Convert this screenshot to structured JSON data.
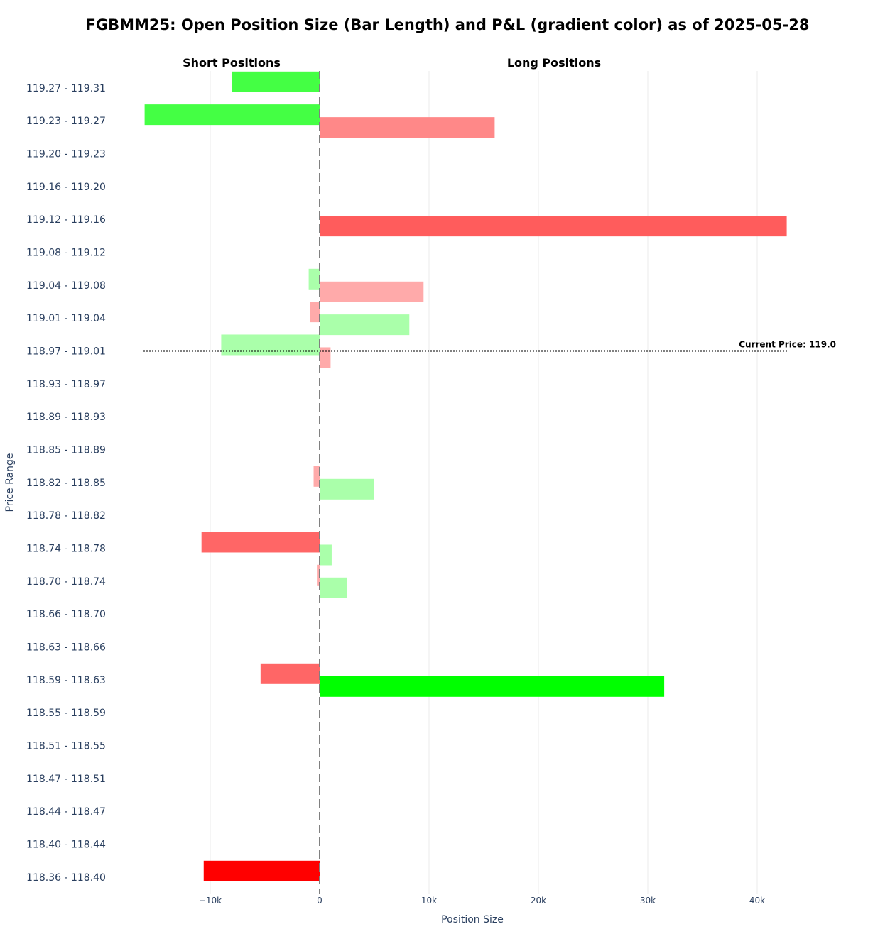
{
  "chart_data": {
    "type": "bar",
    "orientation": "horizontal",
    "title": "FGBMM25: Open Position Size (Bar Length) and P&L (gradient color) as of 2025-05-28",
    "xlabel": "Position Size",
    "ylabel": "Price Range",
    "section_labels": {
      "short": "Short Positions",
      "long": "Long Positions"
    },
    "xlim": [
      -16000,
      46000
    ],
    "x_ticks": [
      {
        "value": -10000,
        "label": "−10k"
      },
      {
        "value": 0,
        "label": "0"
      },
      {
        "value": 10000,
        "label": "10k"
      },
      {
        "value": 20000,
        "label": "20k"
      },
      {
        "value": 30000,
        "label": "30k"
      },
      {
        "value": 40000,
        "label": "40k"
      }
    ],
    "grid": true,
    "categories": [
      "119.27 - 119.31",
      "119.23 - 119.27",
      "119.20 - 119.23",
      "119.16 - 119.20",
      "119.12 - 119.16",
      "119.08 - 119.12",
      "119.04 - 119.08",
      "119.01 - 119.04",
      "118.97 - 119.01",
      "118.93 - 118.97",
      "118.89 - 118.93",
      "118.85 - 118.89",
      "118.82 - 118.85",
      "118.78 - 118.82",
      "118.74 - 118.78",
      "118.70 - 118.74",
      "118.66 - 118.70",
      "118.63 - 118.66",
      "118.59 - 118.63",
      "118.55 - 118.59",
      "118.51 - 118.55",
      "118.47 - 118.51",
      "118.44 - 118.47",
      "118.40 - 118.44",
      "118.36 - 118.40"
    ],
    "series": [
      {
        "name": "Short Positions",
        "values": [
          -8000,
          -16000,
          0,
          0,
          0,
          0,
          -1000,
          -900,
          -9000,
          0,
          0,
          0,
          -550,
          0,
          -10800,
          -250,
          0,
          0,
          -5400,
          0,
          0,
          0,
          0,
          0,
          -10600
        ],
        "colors": [
          "#44ff44",
          "#44ff44",
          null,
          null,
          null,
          null,
          "#aaffaa",
          "#ffaaaa",
          "#aaffaa",
          null,
          null,
          null,
          "#ffaaaa",
          null,
          "#ff6666",
          "#ffaaaa",
          null,
          null,
          "#ff6666",
          null,
          null,
          null,
          null,
          null,
          "#ff0000"
        ]
      },
      {
        "name": "Long Positions",
        "values": [
          0,
          16000,
          0,
          0,
          42700,
          0,
          9500,
          8200,
          1000,
          0,
          0,
          0,
          5000,
          0,
          1100,
          2500,
          0,
          0,
          31500,
          0,
          0,
          0,
          0,
          0,
          0
        ],
        "colors": [
          null,
          "#ff8888",
          null,
          null,
          "#ff5c5c",
          null,
          "#ffaaaa",
          "#aaffaa",
          "#ffaaaa",
          null,
          null,
          null,
          "#aaffaa",
          null,
          "#aaffaa",
          "#aaffaa",
          null,
          null,
          "#00ff00",
          null,
          null,
          null,
          null,
          null,
          null
        ]
      }
    ],
    "current_price": {
      "value": 119.0,
      "category": "118.97 - 119.01",
      "label": "Current Price: 119.0"
    }
  }
}
